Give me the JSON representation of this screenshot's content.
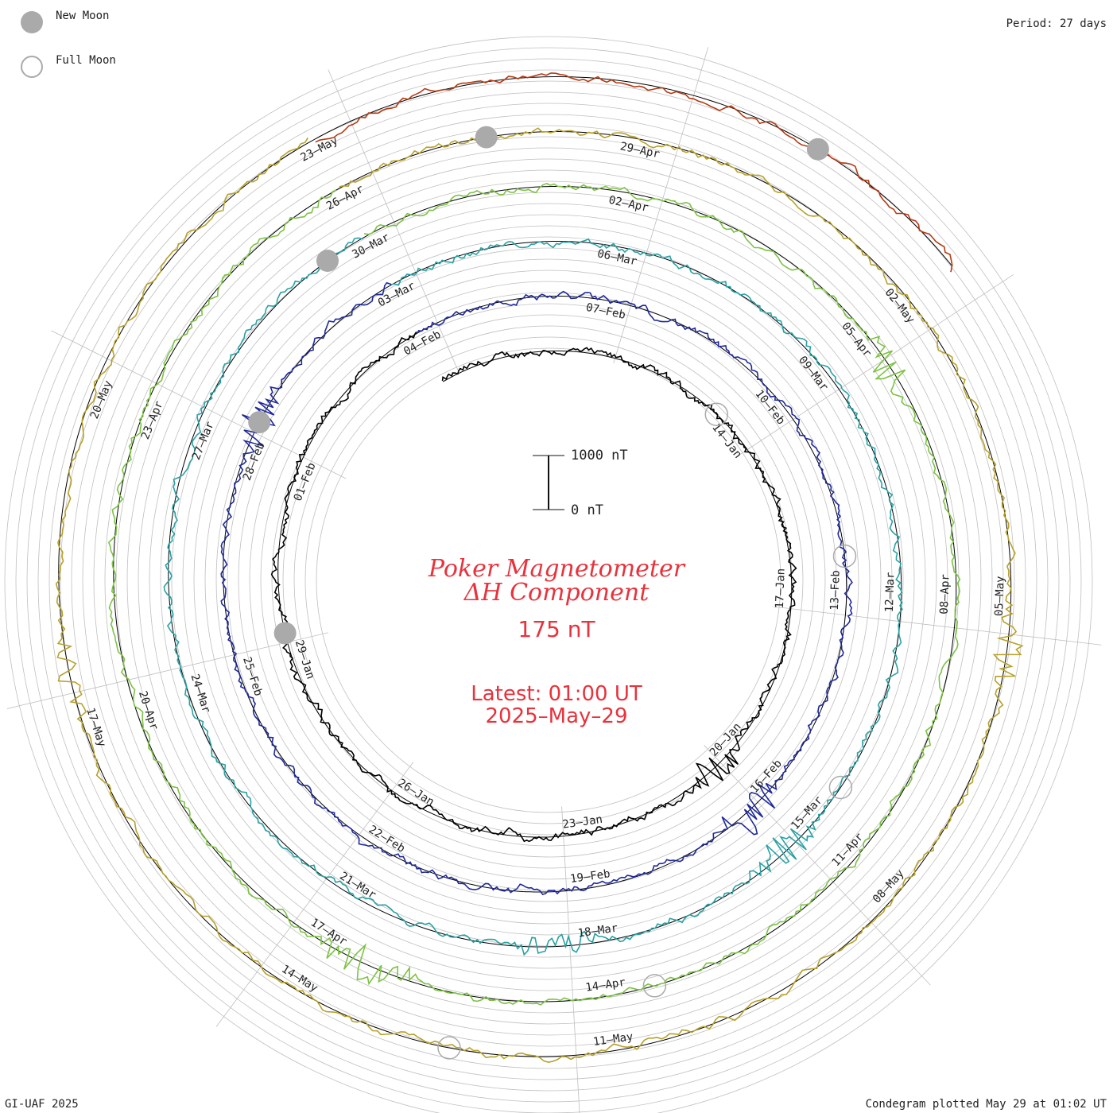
{
  "legend": {
    "new_moon": "New Moon",
    "full_moon": "Full Moon"
  },
  "period": "Period: 27 days",
  "title": {
    "line1": "Poker Magnetometer",
    "line2": "ΔH Component",
    "baseline": "175 nT"
  },
  "latest": {
    "line1": "Latest: 01:00 UT",
    "line2": "2025–May–29"
  },
  "scale_bar": {
    "top_label": "1000 nT",
    "bottom_label": "0 nT"
  },
  "footer": {
    "credit": "GI-UAF 2025",
    "plotted": "Condegram plotted May 29 at 01:02 UT"
  },
  "colors": {
    "background": "#ffffff",
    "grid": "#bfbfbf",
    "spokes": "#bfbfbf",
    "baseline_circle": "#000000",
    "title": "#e8323c",
    "moon": "#aaaaaa",
    "text": "#222222"
  },
  "chart_data": {
    "type": "line",
    "chart_kind": "condegram spiral",
    "period_days": 27,
    "rotations": 6,
    "start_date": "2025-01-08",
    "end_date": "2025-05-29",
    "baseline_nT": 175,
    "scale_bar_nT": [
      0,
      1000
    ],
    "series": [
      {
        "rotation": 1,
        "start": "2025-01-08",
        "end": "2025-02-04",
        "color": "#000000"
      },
      {
        "rotation": 2,
        "start": "2025-02-04",
        "end": "2025-03-03",
        "color": "#1f2a9a"
      },
      {
        "rotation": 3,
        "start": "2025-03-03",
        "end": "2025-03-30",
        "color": "#2aa1a3"
      },
      {
        "rotation": 4,
        "start": "2025-03-30",
        "end": "2025-04-26",
        "color": "#7cc243"
      },
      {
        "rotation": 5,
        "start": "2025-04-26",
        "end": "2025-05-23",
        "color": "#b7a12a"
      },
      {
        "rotation": 6,
        "start": "2025-05-23",
        "end": "2025-05-29",
        "color": "#b43a13"
      }
    ],
    "date_labels": [
      "14–Jan",
      "17–Jan",
      "20–Jan",
      "23–Jan",
      "26–Jan",
      "29–Jan",
      "01–Feb",
      "04–Feb",
      "07–Feb",
      "10–Feb",
      "13–Feb",
      "16–Feb",
      "19–Feb",
      "22–Feb",
      "25–Feb",
      "28–Feb",
      "03–Mar",
      "06–Mar",
      "09–Mar",
      "12–Mar",
      "15–Mar",
      "18–Mar",
      "21–Mar",
      "24–Mar",
      "27–Mar",
      "30–Mar",
      "02–Apr",
      "05–Apr",
      "08–Apr",
      "11–Apr",
      "14–Apr",
      "17–Apr",
      "20–Apr",
      "23–Apr",
      "26–Apr",
      "29–Apr",
      "02–May",
      "05–May",
      "08–May",
      "11–May",
      "14–May",
      "17–May",
      "20–May",
      "23–May"
    ],
    "moon_phases": [
      {
        "phase": "full",
        "date": "2025-01-13"
      },
      {
        "phase": "new",
        "date": "2025-01-29"
      },
      {
        "phase": "full",
        "date": "2025-02-12"
      },
      {
        "phase": "new",
        "date": "2025-02-28"
      },
      {
        "phase": "full",
        "date": "2025-03-14"
      },
      {
        "phase": "new",
        "date": "2025-03-29"
      },
      {
        "phase": "full",
        "date": "2025-04-13"
      },
      {
        "phase": "new",
        "date": "2025-04-27"
      },
      {
        "phase": "full",
        "date": "2025-05-12"
      },
      {
        "phase": "new",
        "date": "2025-05-27"
      }
    ],
    "disturbances_nT": [
      {
        "date": "2025-01-20",
        "peak": 420
      },
      {
        "date": "2025-02-16",
        "peak": 520
      },
      {
        "date": "2025-02-28",
        "peak": 430
      },
      {
        "date": "2025-03-15",
        "peak": 450
      },
      {
        "date": "2025-03-18",
        "peak": 380
      },
      {
        "date": "2025-04-05",
        "peak": 420
      },
      {
        "date": "2025-04-16",
        "peak": 480
      },
      {
        "date": "2025-05-05",
        "peak": 360
      },
      {
        "date": "2025-05-17",
        "peak": 300
      },
      {
        "date": "2025-05-29",
        "peak": 300
      }
    ]
  }
}
